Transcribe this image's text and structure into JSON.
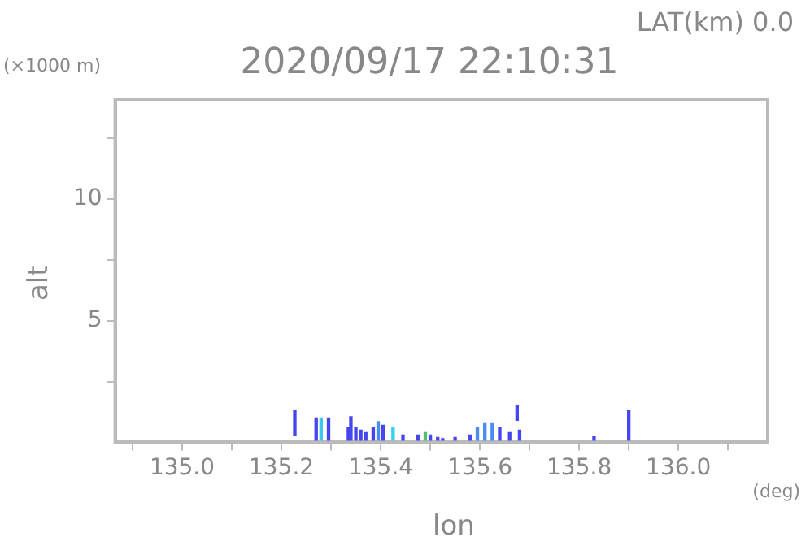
{
  "chart_data": {
    "type": "bar",
    "title": "2020/09/17 22:10:31",
    "xlabel": "lon",
    "ylabel": "alt",
    "annotations": [
      "LAT(km) 0.0",
      "(×1000 m)",
      "(deg)"
    ],
    "x": [
      135.227,
      135.27,
      135.28,
      135.295,
      135.335,
      135.34,
      135.35,
      135.36,
      135.37,
      135.385,
      135.395,
      135.405,
      135.425,
      135.445,
      135.475,
      135.49,
      135.5,
      135.515,
      135.525,
      135.55,
      135.58,
      135.595,
      135.61,
      135.625,
      135.64,
      135.66,
      135.675,
      135.68,
      135.83,
      135.9
    ],
    "values": [
      1.0,
      1.0,
      1.0,
      1.0,
      0.6,
      1.05,
      0.6,
      0.5,
      0.4,
      0.6,
      0.85,
      0.7,
      0.6,
      0.3,
      0.3,
      0.4,
      0.3,
      0.2,
      0.15,
      0.2,
      0.3,
      0.6,
      0.8,
      0.8,
      0.6,
      0.4,
      0.6,
      0.5,
      0.25,
      1.3
    ],
    "base": [
      0.3,
      0,
      0,
      0,
      0,
      0,
      0,
      0,
      0,
      0,
      0,
      0,
      0,
      0,
      0,
      0,
      0,
      0,
      0,
      0,
      0,
      0,
      0,
      0,
      0,
      0,
      0.9,
      0,
      0,
      0
    ],
    "colors": [
      "#4646f0",
      "#4646f0",
      "#38c8f0",
      "#4646f0",
      "#4646f0",
      "#4646f0",
      "#4646f0",
      "#4646f0",
      "#4646f0",
      "#4646f0",
      "#4a8cf0",
      "#4646f0",
      "#38d0f0",
      "#4646f0",
      "#4646f0",
      "#50c070",
      "#4646f0",
      "#4646f0",
      "#4646f0",
      "#4646f0",
      "#4646f0",
      "#4a8cf0",
      "#4a8cf0",
      "#4a8cf0",
      "#4646f0",
      "#4646f0",
      "#4646f0",
      "#4646f0",
      "#4646f0",
      "#4646f0"
    ],
    "xlim": [
      134.865,
      136.18
    ],
    "xticks": [
      {
        "value": 134.9,
        "label": null
      },
      {
        "value": 135.0,
        "label": "135.0"
      },
      {
        "value": 135.1,
        "label": null
      },
      {
        "value": 135.2,
        "label": "135.2"
      },
      {
        "value": 135.3,
        "label": null
      },
      {
        "value": 135.4,
        "label": "135.4"
      },
      {
        "value": 135.5,
        "label": null
      },
      {
        "value": 135.6,
        "label": "135.6"
      },
      {
        "value": 135.7,
        "label": null
      },
      {
        "value": 135.8,
        "label": "135.8"
      },
      {
        "value": 135.9,
        "label": null
      },
      {
        "value": 136.0,
        "label": "136.0"
      },
      {
        "value": 136.1,
        "label": null
      }
    ],
    "ylim": [
      0,
      14.1
    ],
    "yticks": [
      {
        "value": 2.5,
        "label": null
      },
      5,
      {
        "value": 7.5,
        "label": null
      },
      10,
      {
        "value": 12.5,
        "label": null
      }
    ],
    "grid": false,
    "legend": false
  }
}
